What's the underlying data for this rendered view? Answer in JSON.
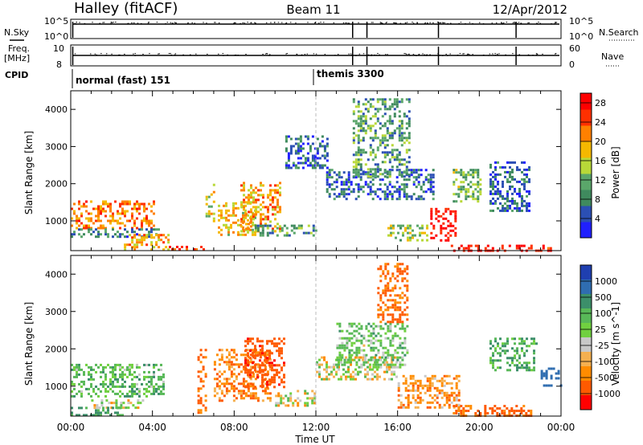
{
  "header": {
    "left": "Halley (fitACF)",
    "center": "Beam 11",
    "right": "12/Apr/2012"
  },
  "strip1": {
    "left_label": "N.Sky",
    "right_label": "N.Search",
    "left_ticks": [
      "10^5",
      "10^0"
    ],
    "right_ticks": [
      "10^5",
      "10^0"
    ]
  },
  "strip2": {
    "left_label_1": "Freq.",
    "left_label_2": "[MHz]",
    "right_label": "Nave",
    "left_ticks": [
      "10",
      "8"
    ],
    "right_ticks": [
      "60",
      "0"
    ]
  },
  "cpid": {
    "label": "CPID",
    "modes": [
      {
        "name": "normal (fast) 151",
        "start_hour": 0
      },
      {
        "name": "themis 3300",
        "start_hour": 12
      }
    ]
  },
  "colors": {
    "power": [
      "#2020ff",
      "#2b4fb4",
      "#3f8a5e",
      "#5aa66a",
      "#b8d838",
      "#f5b800",
      "#ff8000",
      "#ff3000",
      "#ff0000"
    ],
    "velocity": [
      "#1f3fb0",
      "#2f6db0",
      "#3c8f6a",
      "#58b858",
      "#70d040",
      "#c8c8c8",
      "#f5b050",
      "#ff8c00",
      "#ff5a00",
      "#ff0000"
    ]
  },
  "chart_data": [
    {
      "type": "heatmap",
      "title": "",
      "xlabel": "Time UT",
      "ylabel": "Slant Range [km]",
      "xlim": [
        0,
        24
      ],
      "ylim": [
        200,
        4500
      ],
      "x_ticks": [
        "00:00",
        "04:00",
        "08:00",
        "12:00",
        "16:00",
        "20:00",
        "00:00"
      ],
      "y_ticks": [
        1000,
        2000,
        3000,
        4000
      ],
      "colorbar": {
        "label": "Power [dB]",
        "ticks": [
          4,
          8,
          12,
          16,
          20,
          24,
          28
        ],
        "range": [
          0,
          30
        ]
      },
      "regions": [
        {
          "t0": 0.0,
          "t1": 4.1,
          "r0": 800,
          "r1": 1550,
          "value": 22
        },
        {
          "t0": 0.0,
          "t1": 4.3,
          "r0": 600,
          "r1": 800,
          "value": 8
        },
        {
          "t0": 2.6,
          "t1": 4.8,
          "r0": 250,
          "r1": 650,
          "value": 20
        },
        {
          "t0": 4.8,
          "t1": 6.6,
          "r0": 220,
          "r1": 330,
          "value": 26
        },
        {
          "t0": 6.6,
          "t1": 7.0,
          "r0": 1000,
          "r1": 2000,
          "value": 16
        },
        {
          "t0": 7.2,
          "t1": 9.0,
          "r0": 650,
          "r1": 1500,
          "value": 18
        },
        {
          "t0": 8.3,
          "t1": 10.2,
          "r0": 750,
          "r1": 2050,
          "value": 20
        },
        {
          "t0": 9.0,
          "t1": 12.0,
          "r0": 600,
          "r1": 900,
          "value": 10
        },
        {
          "t0": 10.5,
          "t1": 12.6,
          "r0": 2400,
          "r1": 3300,
          "value": 6
        },
        {
          "t0": 12.5,
          "t1": 17.8,
          "r0": 1600,
          "r1": 2400,
          "value": 6
        },
        {
          "t0": 13.8,
          "t1": 16.6,
          "r0": 2200,
          "r1": 4300,
          "value": 10
        },
        {
          "t0": 15.5,
          "t1": 17.5,
          "r0": 500,
          "r1": 900,
          "value": 14
        },
        {
          "t0": 17.6,
          "t1": 18.8,
          "r0": 500,
          "r1": 1350,
          "value": 28
        },
        {
          "t0": 18.7,
          "t1": 20.0,
          "r0": 1500,
          "r1": 2400,
          "value": 12
        },
        {
          "t0": 18.6,
          "t1": 23.5,
          "r0": 220,
          "r1": 360,
          "value": 28
        },
        {
          "t0": 20.5,
          "t1": 22.5,
          "r0": 1300,
          "r1": 2600,
          "value": 6
        }
      ]
    },
    {
      "type": "heatmap",
      "title": "",
      "xlabel": "Time UT",
      "ylabel": "Slant Range [km]",
      "xlim": [
        0,
        24
      ],
      "ylim": [
        200,
        4500
      ],
      "x_ticks": [
        "00:00",
        "04:00",
        "08:00",
        "12:00",
        "16:00",
        "20:00",
        "00:00"
      ],
      "y_ticks": [
        1000,
        2000,
        3000,
        4000
      ],
      "colorbar": {
        "label": "Velocity [m s^-1]",
        "ticks": [
          1000,
          500,
          100,
          25,
          -25,
          -100,
          -500,
          -1000
        ]
      },
      "regions": [
        {
          "t0": 0.0,
          "t1": 4.5,
          "r0": 700,
          "r1": 1600,
          "value": 150
        },
        {
          "t0": 1.0,
          "t1": 3.5,
          "r0": 450,
          "r1": 650,
          "value": 0
        },
        {
          "t0": 0.0,
          "t1": 2.5,
          "r0": 200,
          "r1": 450,
          "value": 300
        },
        {
          "t0": 6.2,
          "t1": 6.6,
          "r0": 300,
          "r1": 2000,
          "value": -300
        },
        {
          "t0": 7.0,
          "t1": 9.8,
          "r0": 600,
          "r1": 2000,
          "value": -200
        },
        {
          "t0": 8.5,
          "t1": 10.5,
          "r0": 1000,
          "r1": 2300,
          "value": -400
        },
        {
          "t0": 10.0,
          "t1": 12.0,
          "r0": 500,
          "r1": 900,
          "value": 0
        },
        {
          "t0": 12.0,
          "t1": 16.0,
          "r0": 1200,
          "r1": 1800,
          "value": 0
        },
        {
          "t0": 13.0,
          "t1": 16.5,
          "r0": 1500,
          "r1": 2700,
          "value": 120
        },
        {
          "t0": 15.0,
          "t1": 16.5,
          "r0": 2700,
          "r1": 4300,
          "value": -300
        },
        {
          "t0": 16.0,
          "t1": 19.0,
          "r0": 400,
          "r1": 1300,
          "value": -150
        },
        {
          "t0": 18.7,
          "t1": 22.5,
          "r0": 220,
          "r1": 500,
          "value": -300
        },
        {
          "t0": 20.5,
          "t1": 22.8,
          "r0": 1400,
          "r1": 2300,
          "value": 200
        },
        {
          "t0": 23.0,
          "t1": 24.0,
          "r0": 1000,
          "r1": 1500,
          "value": 800
        }
      ]
    }
  ]
}
